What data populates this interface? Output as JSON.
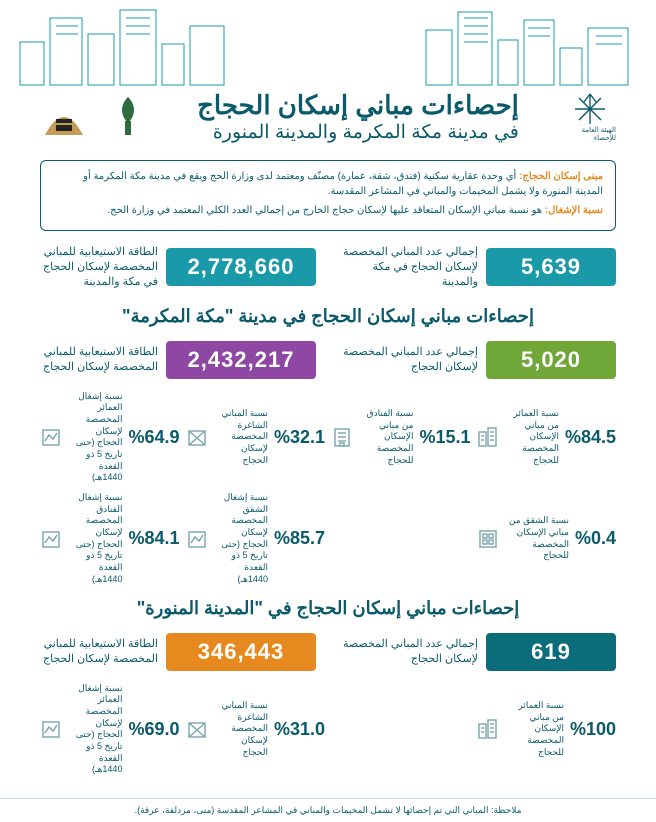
{
  "header": {
    "title_main": "إحصاءات مباني إسكان الحجاج",
    "title_sub": "في مدينة مكة المكرمة والمدينة المنورة",
    "stat_authority": "الهيئة العامة للإحصاء"
  },
  "colors": {
    "teal": "#1a9aa8",
    "dark_teal": "#0c6d7a",
    "purple": "#8e47a2",
    "green": "#6fa838",
    "orange": "#e68a1f",
    "text": "#0a5a6b",
    "skyline": "#1a9aa8",
    "bg": "#ffffff"
  },
  "defs": {
    "term1": "مبنى إسكان الحجاج:",
    "def1": "أي وحدة عقارية سكنية (فندق، شقة، عمارة) مصنّف ومعتمد لدى وزارة الحج ويقع في مدينة مكة المكرمة أو المدينة المنورة ولا يشمل المخيمات والمباني في المشاعر المقدسة.",
    "term2": "نسبة الإشغال:",
    "def2": "هو نسبة مباني الإسكان المتعاقد عليها لإسكان حجاج الخارج من إجمالي العدد الكلي المعتمد في وزارة الحج."
  },
  "overall": {
    "buildings": {
      "value": "5,639",
      "label": "إجمالي عدد المباني المخصصة لإسكان الحجاج في مكة والمدينة",
      "color": "bg-teal"
    },
    "capacity": {
      "value": "2,778,660",
      "label": "الطاقة الاستيعابية للمباني المخصصة لإسكان الحجاج في مكة والمدينة",
      "color": "bg-teal"
    }
  },
  "makkah": {
    "section_title": "إحصاءات مباني إسكان الحجاج في مدينة \"مكة المكرمة\"",
    "buildings": {
      "value": "5,020",
      "label": "إجمالي عدد المباني المخصصة لإسكان الحجاج",
      "color": "bg-green"
    },
    "capacity": {
      "value": "2,432,217",
      "label": "الطاقة الاستيعابية للمباني المخصصة لإسكان الحجاج",
      "color": "bg-purple"
    },
    "row1": [
      {
        "val": "%84.5",
        "label": "نسبة العمائر من مباني الإسكان المخصصة للحجاج",
        "icon": "buildings"
      },
      {
        "val": "%15.1",
        "label": "نسبة الفنادق من مباني الإسكان المخصصة للحجاج",
        "icon": "hotel"
      },
      {
        "val": "%32.1",
        "label": "نسبة المباني الشاغرة المخصصة لإسكان الحجاج",
        "icon": "vacant"
      },
      {
        "val": "%64.9",
        "label": "نسبة إشغال العمائر المخصصة لإسكان الحجاج (حتى تاريخ 5 ذو القعدة 1440هـ)",
        "icon": "occ-b"
      }
    ],
    "row2": [
      {
        "val": "%0.4",
        "label": "نسبة الشقق من مباني الإسكان المخصصة للحجاج",
        "icon": "apt"
      },
      {
        "val": "",
        "label": "",
        "icon": ""
      },
      {
        "val": "%85.7",
        "label": "نسبة إشغال الشقق المخصصة لإسكان الحجاج (حتى تاريخ 5 ذو القعدة 1440هـ)",
        "icon": "occ-a"
      },
      {
        "val": "%84.1",
        "label": "نسبة إشغال الفنادق المخصصة لإسكان الحجاج (حتى تاريخ 5 ذو القعدة 1440هـ)",
        "icon": "occ-h"
      }
    ]
  },
  "madinah": {
    "section_title": "إحصاءات مباني إسكان الحجاج في \"المدينة المنورة\"",
    "buildings": {
      "value": "619",
      "label": "إجمالي عدد المباني المخصصة لإسكان الحجاج",
      "color": "bg-dkteal"
    },
    "capacity": {
      "value": "346,443",
      "label": "الطاقة الاستيعابية للمباني المخصصة لإسكان الحجاج",
      "color": "bg-orange"
    },
    "row": [
      {
        "val": "%100",
        "label": "نسبة العمائر من مباني الإسكان المخصصة للحجاج",
        "icon": "buildings"
      },
      {
        "val": "",
        "label": "",
        "icon": ""
      },
      {
        "val": "%31.0",
        "label": "نسبة المباني الشاغرة المخصصة لإسكان الحجاج",
        "icon": "vacant"
      },
      {
        "val": "%69.0",
        "label": "نسبة إشغال العمائر المخصصة لإسكان الحجاج (حتى تاريخ 5 ذو القعدة 1440هـ)",
        "icon": "occ-b"
      }
    ]
  },
  "footnote": "ملاحظة: المباني التي تم إحصائها لا تشمل المخيمات والمباني في المشاعر المقدسة (منى، مزدلفة، عرفة)."
}
